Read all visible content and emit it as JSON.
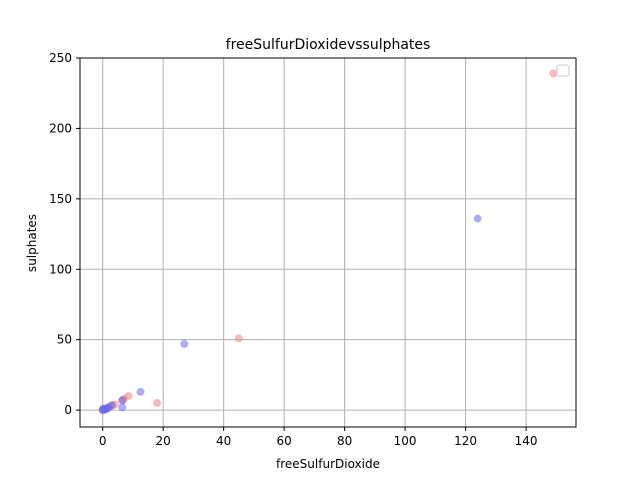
{
  "chart_data": {
    "type": "scatter",
    "title": "freeSulfurDioxidevssulphates",
    "xlabel": "freeSulfurDioxide",
    "ylabel": "sulphates",
    "xlim": [
      -7.5,
      156.5
    ],
    "ylim": [
      -12,
      250
    ],
    "xticks": [
      0,
      20,
      40,
      60,
      80,
      100,
      120,
      140
    ],
    "yticks": [
      0,
      50,
      100,
      150,
      200,
      250
    ],
    "grid": true,
    "legend": {
      "position": "top-right",
      "entries": []
    },
    "series": [
      {
        "color": "#f08080",
        "points": [
          [
            149,
            239
          ],
          [
            45,
            51
          ],
          [
            18,
            5
          ],
          [
            8.5,
            10
          ],
          [
            7,
            8
          ],
          [
            6.5,
            7
          ],
          [
            4,
            4
          ],
          [
            3,
            3
          ],
          [
            2,
            2
          ],
          [
            1.5,
            1.5
          ],
          [
            1,
            1
          ],
          [
            0.5,
            0.5
          ],
          [
            0,
            0
          ],
          [
            0.3,
            1
          ]
        ]
      },
      {
        "color": "#6a6af0",
        "points": [
          [
            124,
            136
          ],
          [
            27,
            47
          ],
          [
            12.5,
            13
          ],
          [
            6.5,
            7
          ],
          [
            6.5,
            2
          ],
          [
            3,
            3.5
          ],
          [
            2,
            2
          ],
          [
            1.5,
            1
          ],
          [
            1,
            1
          ],
          [
            0.8,
            0.5
          ],
          [
            0.5,
            0.5
          ],
          [
            0.3,
            0.3
          ],
          [
            0,
            0
          ],
          [
            0.2,
            1
          ]
        ]
      }
    ]
  },
  "colors": {
    "grid": "#b0b0b0",
    "axes": "#000000"
  }
}
